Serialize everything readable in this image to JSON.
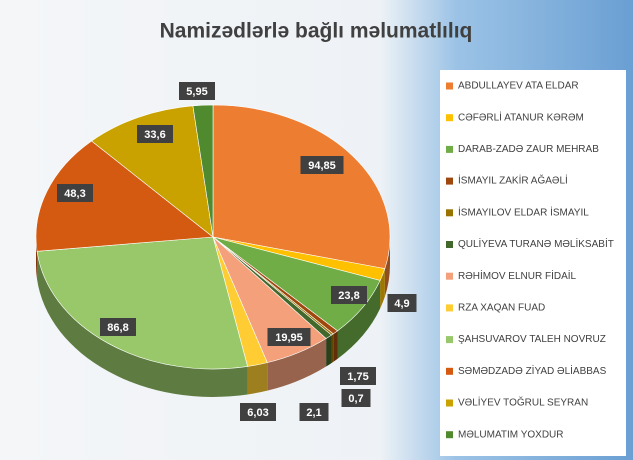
{
  "chart_data": {
    "type": "pie",
    "title": "Namizədlərlə bağlı məlumatlılıq",
    "categories": [
      "ABDULLAYEV ATA ELDAR",
      "CƏFƏRLİ ATANUR KƏRƏM",
      "DARAB-ZADƏ ZAUR MEHRAB",
      "İSMAYIL ZAKİR AĞAƏLİ",
      "İSMAYILOV ELDAR İSMAYIL",
      "QULİYEVA TURANƏ MƏLİKSABİT",
      "RƏHİMOV ELNUR FİDAİL",
      "RZA XAQAN FUAD",
      "ŞAHSUVAROV TALEH NOVRUZ",
      "SƏMƏDZADƏ ZİYAD ƏLİABBAS",
      "VƏLİYEV TOĞRUL SEYRAN",
      "MƏLUMATIM YOXDUR"
    ],
    "values": [
      94.85,
      4.9,
      23.8,
      1.75,
      0.7,
      2.1,
      19.95,
      6.03,
      86.8,
      48.3,
      33.6,
      5.95
    ],
    "value_labels": [
      "94,85",
      "4,9",
      "23,8",
      "1,75",
      "0,7",
      "2,1",
      "19,95",
      "6,03",
      "86,8",
      "48,3",
      "33,6",
      "5,95"
    ],
    "colors": [
      "#ed7d31",
      "#ffc000",
      "#70ad47",
      "#9e480e",
      "#997300",
      "#43682b",
      "#f4a07a",
      "#ffcd33",
      "#98c86a",
      "#d45a12",
      "#c9a200",
      "#4f8a2e"
    ],
    "legend": "right"
  }
}
